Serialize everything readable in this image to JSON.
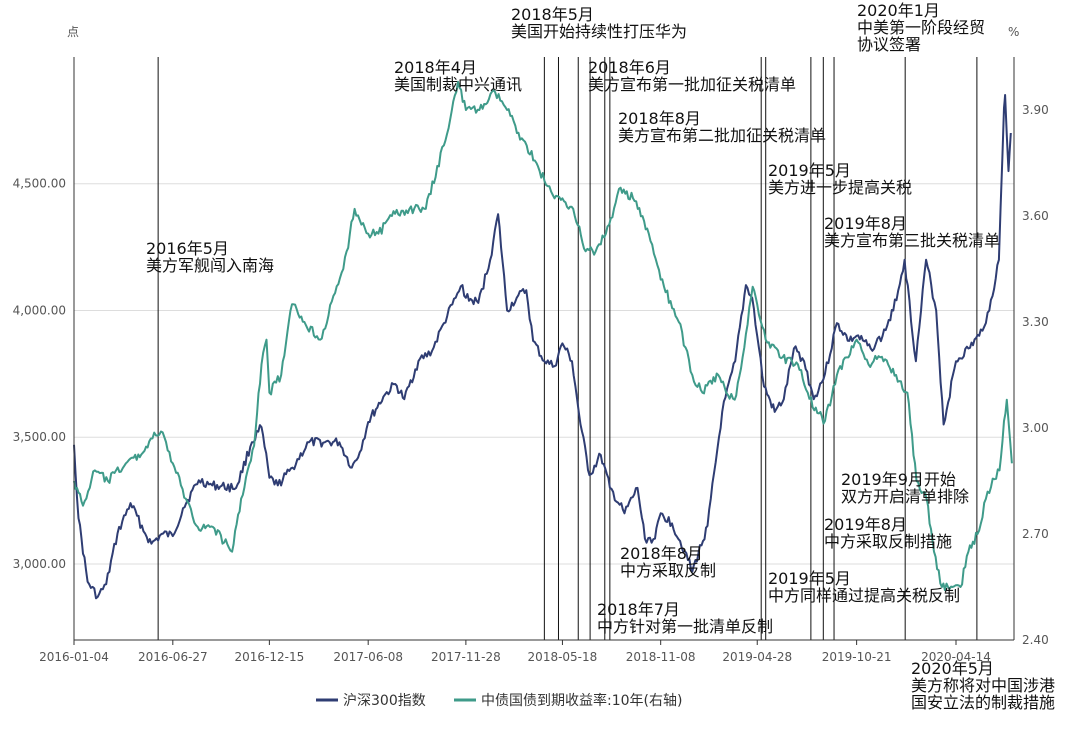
{
  "chart_data": {
    "type": "line",
    "title": "",
    "left_unit": "点",
    "right_unit": "%",
    "x_ticks": [
      "2016-01-04",
      "2016-06-27",
      "2016-12-15",
      "2017-06-08",
      "2017-11-28",
      "2018-05-18",
      "2018-11-08",
      "2019-04-28",
      "2019-10-21",
      "2020-04-14"
    ],
    "y_left": {
      "min": 2700,
      "max": 5000,
      "ticks": [
        "3,000.00",
        "3,500.00",
        "4,000.00",
        "4,500.00"
      ],
      "tick_values": [
        3000,
        3500,
        4000,
        4500
      ]
    },
    "y_right": {
      "min": 2.4,
      "max": 4.05,
      "ticks": [
        "2.40",
        "2.70",
        "3.00",
        "3.30",
        "3.60",
        "3.90"
      ],
      "tick_values": [
        2.4,
        2.7,
        3.0,
        3.3,
        3.6,
        3.9
      ]
    },
    "grid": true,
    "legend_position": "bottom",
    "series": [
      {
        "name": "沪深300指数",
        "axis": "left",
        "color": "#2f3d73",
        "points": [
          [
            "2016-01-04",
            3470
          ],
          [
            "2016-01-12",
            3180
          ],
          [
            "2016-01-28",
            2930
          ],
          [
            "2016-02-15",
            2870
          ],
          [
            "2016-03-01",
            2920
          ],
          [
            "2016-03-21",
            3120
          ],
          [
            "2016-04-13",
            3240
          ],
          [
            "2016-05-09",
            3120
          ],
          [
            "2016-05-20",
            3080
          ],
          [
            "2016-06-10",
            3120
          ],
          [
            "2016-06-27",
            3110
          ],
          [
            "2016-07-15",
            3220
          ],
          [
            "2016-08-12",
            3330
          ],
          [
            "2016-09-05",
            3310
          ],
          [
            "2016-10-17",
            3300
          ],
          [
            "2016-11-14",
            3480
          ],
          [
            "2016-12-01",
            3540
          ],
          [
            "2016-12-15",
            3340
          ],
          [
            "2016-12-30",
            3310
          ],
          [
            "2017-01-25",
            3380
          ],
          [
            "2017-02-23",
            3480
          ],
          [
            "2017-03-23",
            3480
          ],
          [
            "2017-04-18",
            3480
          ],
          [
            "2017-05-10",
            3380
          ],
          [
            "2017-05-24",
            3440
          ],
          [
            "2017-06-08",
            3560
          ],
          [
            "2017-07-05",
            3660
          ],
          [
            "2017-07-26",
            3710
          ],
          [
            "2017-08-11",
            3650
          ],
          [
            "2017-09-05",
            3800
          ],
          [
            "2017-09-29",
            3840
          ],
          [
            "2017-10-20",
            3950
          ],
          [
            "2017-11-10",
            4050
          ],
          [
            "2017-11-22",
            4100
          ],
          [
            "2017-11-28",
            4050
          ],
          [
            "2017-12-20",
            4030
          ],
          [
            "2018-01-10",
            4200
          ],
          [
            "2018-01-24",
            4380
          ],
          [
            "2018-02-09",
            4000
          ],
          [
            "2018-02-26",
            4050
          ],
          [
            "2018-03-15",
            4080
          ],
          [
            "2018-03-27",
            3880
          ],
          [
            "2018-04-16",
            3800
          ],
          [
            "2018-05-04",
            3780
          ],
          [
            "2018-05-18",
            3870
          ],
          [
            "2018-06-04",
            3800
          ],
          [
            "2018-06-19",
            3550
          ],
          [
            "2018-07-05",
            3350
          ],
          [
            "2018-07-25",
            3430
          ],
          [
            "2018-08-10",
            3300
          ],
          [
            "2018-09-05",
            3200
          ],
          [
            "2018-09-28",
            3300
          ],
          [
            "2018-10-11",
            3100
          ],
          [
            "2018-10-29",
            3100
          ],
          [
            "2018-11-08",
            3200
          ],
          [
            "2018-11-28",
            3160
          ],
          [
            "2018-12-21",
            3050
          ],
          [
            "2019-01-03",
            2970
          ],
          [
            "2019-01-30",
            3150
          ],
          [
            "2019-02-25",
            3600
          ],
          [
            "2019-03-20",
            3800
          ],
          [
            "2019-04-08",
            4100
          ],
          [
            "2019-04-19",
            4050
          ],
          [
            "2019-04-28",
            3900
          ],
          [
            "2019-05-10",
            3700
          ],
          [
            "2019-05-29",
            3600
          ],
          [
            "2019-06-14",
            3650
          ],
          [
            "2019-07-02",
            3850
          ],
          [
            "2019-07-20",
            3800
          ],
          [
            "2019-08-06",
            3650
          ],
          [
            "2019-08-26",
            3750
          ],
          [
            "2019-09-16",
            3950
          ],
          [
            "2019-10-08",
            3880
          ],
          [
            "2019-10-21",
            3900
          ],
          [
            "2019-11-15",
            3850
          ],
          [
            "2019-12-06",
            3900
          ],
          [
            "2019-12-25",
            4000
          ],
          [
            "2020-01-14",
            4200
          ],
          [
            "2020-02-03",
            3800
          ],
          [
            "2020-02-21",
            4200
          ],
          [
            "2020-03-10",
            4000
          ],
          [
            "2020-03-23",
            3550
          ],
          [
            "2020-04-14",
            3800
          ],
          [
            "2020-05-06",
            3850
          ],
          [
            "2020-05-25",
            3900
          ],
          [
            "2020-06-12",
            4000
          ],
          [
            "2020-06-29",
            4200
          ],
          [
            "2020-07-08",
            4800
          ],
          [
            "2020-07-10",
            4850
          ],
          [
            "2020-07-16",
            4550
          ],
          [
            "2020-07-20",
            4700
          ]
        ]
      },
      {
        "name": "中债国债到期收益率:10年(右轴)",
        "axis": "right",
        "color": "#3f9b8a",
        "points": [
          [
            "2016-01-04",
            2.85
          ],
          [
            "2016-01-20",
            2.78
          ],
          [
            "2016-02-10",
            2.88
          ],
          [
            "2016-03-04",
            2.85
          ],
          [
            "2016-04-05",
            2.9
          ],
          [
            "2016-05-05",
            2.93
          ],
          [
            "2016-05-19",
            2.97
          ],
          [
            "2016-06-06",
            2.99
          ],
          [
            "2016-06-27",
            2.9
          ],
          [
            "2016-07-20",
            2.8
          ],
          [
            "2016-08-10",
            2.72
          ],
          [
            "2016-09-06",
            2.72
          ],
          [
            "2016-10-10",
            2.65
          ],
          [
            "2016-10-26",
            2.8
          ],
          [
            "2016-11-18",
            2.95
          ],
          [
            "2016-12-01",
            3.18
          ],
          [
            "2016-12-10",
            3.25
          ],
          [
            "2016-12-15",
            3.1
          ],
          [
            "2017-01-05",
            3.15
          ],
          [
            "2017-01-24",
            3.35
          ],
          [
            "2017-02-15",
            3.3
          ],
          [
            "2017-03-15",
            3.25
          ],
          [
            "2017-04-25",
            3.45
          ],
          [
            "2017-05-15",
            3.62
          ],
          [
            "2017-06-08",
            3.55
          ],
          [
            "2017-06-26",
            3.55
          ],
          [
            "2017-07-20",
            3.6
          ],
          [
            "2017-08-20",
            3.62
          ],
          [
            "2017-09-18",
            3.62
          ],
          [
            "2017-10-20",
            3.8
          ],
          [
            "2017-11-14",
            3.98
          ],
          [
            "2017-11-28",
            3.9
          ],
          [
            "2017-12-22",
            3.9
          ],
          [
            "2018-01-19",
            3.95
          ],
          [
            "2018-02-09",
            3.9
          ],
          [
            "2018-03-07",
            3.82
          ],
          [
            "2018-04-02",
            3.75
          ],
          [
            "2018-04-16",
            3.7
          ],
          [
            "2018-05-04",
            3.65
          ],
          [
            "2018-05-18",
            3.65
          ],
          [
            "2018-06-06",
            3.62
          ],
          [
            "2018-06-28",
            3.5
          ],
          [
            "2018-07-16",
            3.5
          ],
          [
            "2018-08-03",
            3.55
          ],
          [
            "2018-08-29",
            3.68
          ],
          [
            "2018-09-20",
            3.65
          ],
          [
            "2018-10-18",
            3.55
          ],
          [
            "2018-11-08",
            3.42
          ],
          [
            "2018-12-10",
            3.3
          ],
          [
            "2019-01-03",
            3.15
          ],
          [
            "2019-01-21",
            3.1
          ],
          [
            "2019-02-18",
            3.15
          ],
          [
            "2019-03-04",
            3.1
          ],
          [
            "2019-03-19",
            3.08
          ],
          [
            "2019-04-02",
            3.2
          ],
          [
            "2019-04-20",
            3.4
          ],
          [
            "2019-04-28",
            3.35
          ],
          [
            "2019-05-13",
            3.25
          ],
          [
            "2019-06-12",
            3.2
          ],
          [
            "2019-07-09",
            3.18
          ],
          [
            "2019-08-07",
            3.05
          ],
          [
            "2019-08-26",
            3.02
          ],
          [
            "2019-09-16",
            3.15
          ],
          [
            "2019-10-21",
            3.25
          ],
          [
            "2019-11-11",
            3.18
          ],
          [
            "2019-12-02",
            3.2
          ],
          [
            "2019-12-30",
            3.15
          ],
          [
            "2020-01-19",
            3.1
          ],
          [
            "2020-02-04",
            2.85
          ],
          [
            "2020-02-22",
            2.8
          ],
          [
            "2020-03-06",
            2.65
          ],
          [
            "2020-03-20",
            2.55
          ],
          [
            "2020-04-08",
            2.55
          ],
          [
            "2020-04-22",
            2.55
          ],
          [
            "2020-05-06",
            2.65
          ],
          [
            "2020-05-22",
            2.7
          ],
          [
            "2020-06-09",
            2.82
          ],
          [
            "2020-06-30",
            2.88
          ],
          [
            "2020-07-08",
            3.02
          ],
          [
            "2020-07-13",
            3.08
          ],
          [
            "2020-07-22",
            2.9
          ]
        ]
      }
    ],
    "events": [
      {
        "date": "2016-06-01",
        "lines": [
          "2016年5月",
          "美方军舰闯入南海"
        ]
      },
      {
        "date": "2018-04-16",
        "lines": [
          "2018年4月",
          "美国制裁中兴通讯"
        ]
      },
      {
        "date": "2018-05-11",
        "lines": [
          "2018年5月",
          "美国开始持续性打压华为"
        ]
      },
      {
        "date": "2018-06-15",
        "lines": [
          "2018年6月",
          "美方宣布第一批加征关税清单"
        ]
      },
      {
        "date": "2018-07-06",
        "lines": [
          "2018年7月",
          "中方针对第一批清单反制"
        ]
      },
      {
        "date": "2018-08-01",
        "lines": [
          "2018年8月",
          "美方宣布第二批加征关税清单"
        ]
      },
      {
        "date": "2018-08-10",
        "lines": [
          "2018年8月",
          "中方采取反制"
        ]
      },
      {
        "date": "2019-05-05",
        "lines": [
          "2019年5月",
          "美方进一步提高关税"
        ]
      },
      {
        "date": "2019-05-13",
        "lines": [
          "2019年5月",
          "中方同样通过提高关税反制"
        ]
      },
      {
        "date": "2019-08-01",
        "lines": [
          "2019年8月",
          "美方宣布第三批关税清单"
        ]
      },
      {
        "date": "2019-08-23",
        "lines": [
          "2019年8月",
          "中方采取反制措施"
        ]
      },
      {
        "date": "2019-09-11",
        "lines": [
          "2019年9月开始",
          "双方开启清单排除"
        ]
      },
      {
        "date": "2020-01-15",
        "lines": [
          "2020年1月",
          "中美第一阶段经贸",
          "协议签署"
        ]
      },
      {
        "date": "2020-05-21",
        "lines": [
          "2020年5月",
          "美方称将对中国涉港",
          "国安立法的制裁措施"
        ]
      }
    ]
  }
}
